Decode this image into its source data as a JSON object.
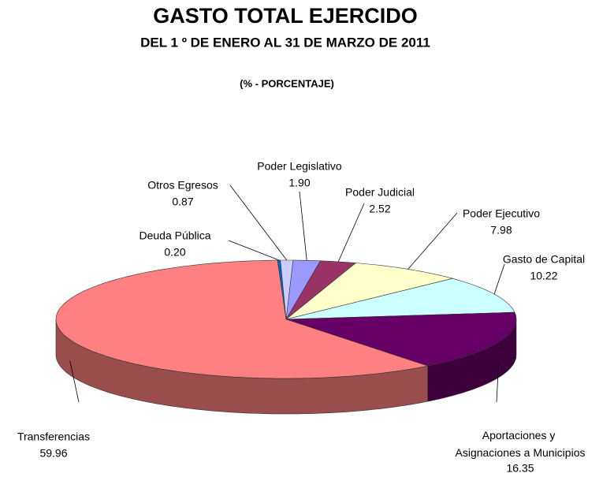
{
  "chart_data": {
    "type": "pie",
    "title": "GASTO TOTAL EJERCIDO",
    "subtitle": "DEL 1 º DE ENERO AL 31 DE MARZO DE 2011",
    "annotation": "(% - PORCENTAJE)",
    "categories": [
      "Poder Legislativo",
      "Poder Judicial",
      "Poder Ejecutivo",
      "Gasto de Capital",
      "Aportaciones y Asignaciones a Municipios",
      "Transferencias",
      "Deuda Pública",
      "Otros Egresos"
    ],
    "values": [
      1.9,
      2.52,
      7.98,
      10.22,
      16.35,
      59.96,
      0.2,
      0.87
    ],
    "value_labels": [
      "1.90",
      "2.52",
      "7.98",
      "10.22",
      "16.35",
      "59.96",
      "0.20",
      "0.87"
    ],
    "colors": [
      "#9999ff",
      "#993366",
      "#ffffcc",
      "#ccffff",
      "#660066",
      "#ff8080",
      "#0066cc",
      "#ccccff"
    ]
  }
}
